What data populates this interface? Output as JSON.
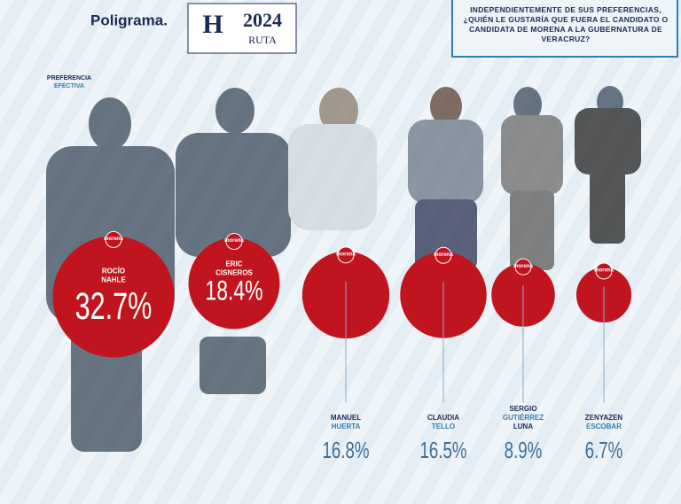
{
  "brand": "Poligrama.",
  "partner_logo": {
    "letter": "H",
    "year": "2024",
    "label": "RUTA"
  },
  "question": "INDEPENDIENTEMENTE DE SUS PREFERENCIAS, ¿QUIÉN LE GUSTARÍA QUE FUERA EL CANDIDATO O CANDIDATA DE MORENA A LA GUBERNATURA DE VERACRUZ?",
  "chart_data": {
    "type": "bubble",
    "subtitle": [
      "PREFERENCIA",
      "EFECTIVA"
    ],
    "party_label": "morena",
    "categories": [
      [
        "ROCÍO",
        "NAHLE"
      ],
      [
        "ERIC",
        "CISNEROS"
      ],
      [
        "MANUEL",
        "HUERTA"
      ],
      [
        "CLAUDIA",
        "TELLO"
      ],
      [
        "SERGIO",
        "GUTIÉRREZ",
        "LUNA"
      ],
      [
        "ZENYAZEN",
        "ESCOBAR"
      ]
    ],
    "values": [
      32.7,
      18.4,
      16.8,
      16.5,
      8.9,
      6.7
    ],
    "value_labels": [
      "32.7%",
      "18.4%",
      "16.8%",
      "16.5%",
      "8.9%",
      "6.7%"
    ],
    "color": "#c0141f",
    "label_color": "#2b7fb0"
  }
}
